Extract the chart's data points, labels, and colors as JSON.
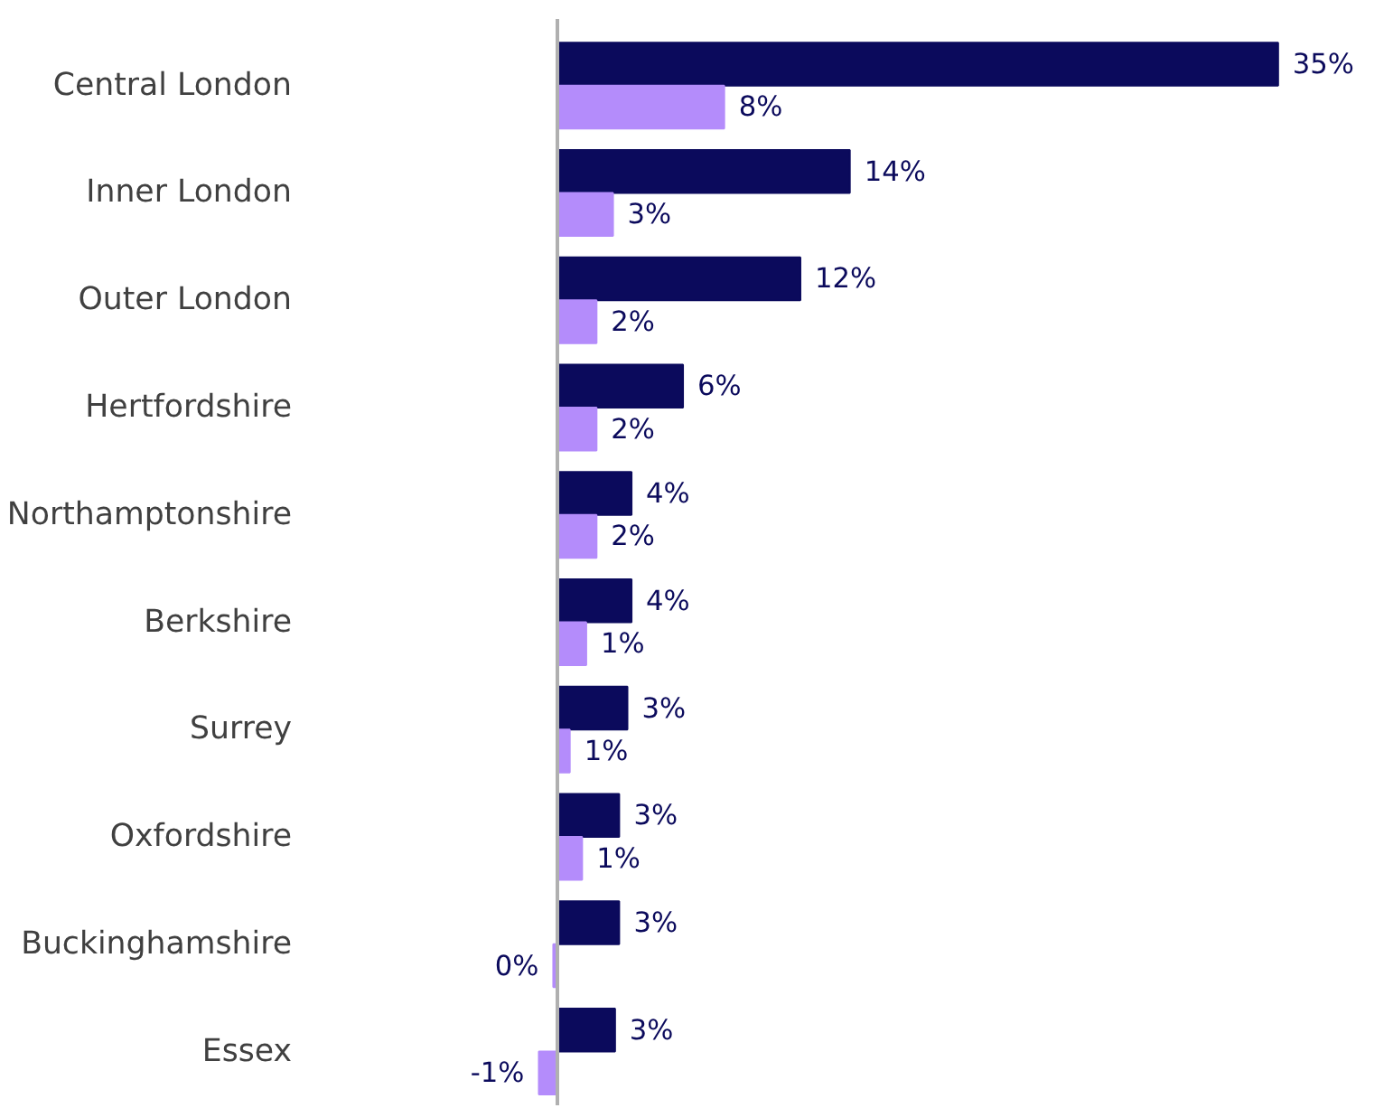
{
  "chart_data": {
    "type": "bar",
    "orientation": "horizontal",
    "categories": [
      "Central London",
      "Inner London",
      "Outer London",
      "Hertfordshire",
      "Northamptonshire",
      "Berkshire",
      "Surrey",
      "Oxfordshire",
      "Buckinghamshire",
      "Essex"
    ],
    "series": [
      {
        "color": "#0b0a5c",
        "values": [
          35,
          14.2,
          11.8,
          6.1,
          3.6,
          3.6,
          3.4,
          3.0,
          3.0,
          2.8
        ],
        "value_labels": [
          "35%",
          "14%",
          "12%",
          "6%",
          "4%",
          "4%",
          "3%",
          "3%",
          "3%",
          "3%"
        ]
      },
      {
        "color": "#b48cfb",
        "values": [
          8.1,
          2.7,
          1.9,
          1.9,
          1.9,
          1.4,
          0.6,
          1.2,
          -0.2,
          -0.9
        ],
        "value_labels": [
          "8%",
          "3%",
          "2%",
          "2%",
          "2%",
          "1%",
          "1%",
          "1%",
          "0%",
          "-1%"
        ]
      }
    ],
    "grid": false,
    "tick_labels": "y"
  }
}
